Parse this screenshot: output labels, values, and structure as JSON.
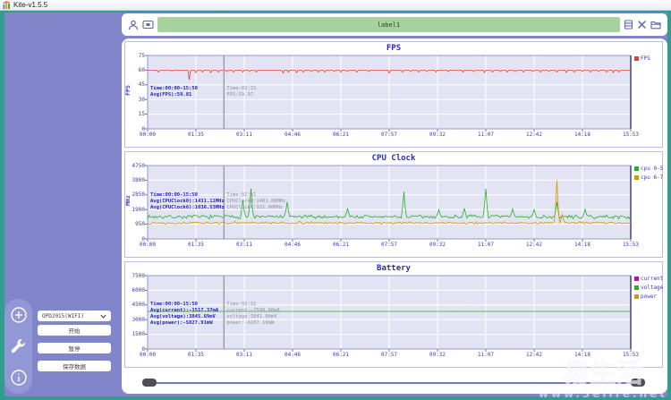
{
  "window": {
    "title": "Kite-v1.5.5"
  },
  "topbar": {
    "label_value": "label1",
    "label_bg": "#a7d29f",
    "icon_color": "#5b64b8"
  },
  "sidebar": {
    "device_select": {
      "value": "OPD2015(WIFI)"
    },
    "buttons": [
      {
        "label": "开始"
      },
      {
        "label": "暂停"
      },
      {
        "label": "保存数据"
      }
    ]
  },
  "watermark": {
    "line1": "易生活",
    "line2": "www.3elife.net"
  },
  "colors": {
    "teal_frame": "#2f9e8e",
    "purple_bg": "#8186cb",
    "plot_bg": "#e3e4f3",
    "grid": "#ffffff",
    "plot_border": "#9598c8",
    "cursor": "#9a9aa4",
    "axis_text": "#3a3ab8"
  },
  "chart_data": [
    {
      "type": "line",
      "title": "FPS",
      "ylabel": "FPS",
      "ylim": [
        0,
        75
      ],
      "yticks": [
        0,
        15,
        30,
        45,
        60,
        75
      ],
      "xticks": [
        "00:00",
        "01:35",
        "03:11",
        "04:46",
        "06:21",
        "07:57",
        "09:32",
        "11:07",
        "12:42",
        "14:18",
        "15:53"
      ],
      "cursor_frac": 0.158,
      "ann_top": 49,
      "legend": [
        {
          "label": "FPS",
          "color": "#e43d3d"
        }
      ],
      "series": [
        {
          "name": "FPS",
          "color": "#e43d3d",
          "baseline": 60,
          "noise": 0,
          "seed": 3,
          "dips": [
            [
              0.022,
              58
            ],
            [
              0.05,
              59
            ],
            [
              0.085,
              50
            ],
            [
              0.1,
              57.5
            ],
            [
              0.115,
              58
            ],
            [
              0.13,
              57.5
            ],
            [
              0.148,
              58
            ],
            [
              0.163,
              58.5
            ],
            [
              0.178,
              58
            ],
            [
              0.197,
              58
            ],
            [
              0.212,
              58.5
            ],
            [
              0.226,
              58
            ],
            [
              0.28,
              57
            ],
            [
              0.292,
              58
            ],
            [
              0.308,
              57.5
            ],
            [
              0.322,
              58
            ],
            [
              0.338,
              58.5
            ],
            [
              0.352,
              58
            ],
            [
              0.368,
              58
            ],
            [
              0.385,
              58.5
            ],
            [
              0.4,
              58
            ],
            [
              0.415,
              58.5
            ],
            [
              0.433,
              58
            ],
            [
              0.458,
              58.5
            ],
            [
              0.5,
              57
            ],
            [
              0.528,
              58
            ],
            [
              0.545,
              58.5
            ],
            [
              0.56,
              58
            ],
            [
              0.578,
              58.5
            ],
            [
              0.598,
              58
            ],
            [
              0.623,
              58.5
            ],
            [
              0.653,
              58
            ],
            [
              0.675,
              58.5
            ],
            [
              0.698,
              57.5
            ],
            [
              0.714,
              58
            ],
            [
              0.73,
              58.5
            ],
            [
              0.745,
              58
            ],
            [
              0.76,
              58.5
            ],
            [
              0.778,
              58
            ],
            [
              0.798,
              58.5
            ],
            [
              0.814,
              58
            ],
            [
              0.83,
              58.5
            ],
            [
              0.848,
              58
            ],
            [
              0.868,
              57.5
            ],
            [
              0.884,
              58
            ],
            [
              0.9,
              58.5
            ],
            [
              0.918,
              58
            ],
            [
              0.934,
              58.5
            ],
            [
              0.95,
              58
            ],
            [
              0.963,
              57.5
            ],
            [
              0.975,
              58
            ]
          ]
        }
      ],
      "annotations": {
        "summary": [
          "Time:00:00-15:50",
          "Avg(FPS):59.81"
        ],
        "cursor": [
          "Time:02:31",
          "FPS:59.97"
        ]
      }
    },
    {
      "type": "line",
      "title": "CPU Clock",
      "ylabel": "MHz",
      "ylim": [
        0,
        4750
      ],
      "yticks": [
        0,
        950,
        1900,
        2850,
        3800,
        4750
      ],
      "xticks": [
        "00:00",
        "01:35",
        "03:11",
        "04:46",
        "06:21",
        "07:57",
        "09:32",
        "11:07",
        "12:42",
        "14:18",
        "15:53"
      ],
      "cursor_frac": 0.158,
      "ann_top": 45,
      "legend": [
        {
          "label": "cpu 0-5",
          "color": "#27b027"
        },
        {
          "label": "cpu 6-7",
          "color": "#cf9a00"
        }
      ],
      "series": [
        {
          "name": "cpu 0-5",
          "color": "#27b027",
          "baseline": 1430,
          "noise": 145,
          "seed": 7,
          "spikes": [
            [
              0.197,
              2500
            ],
            [
              0.214,
              3250
            ],
            [
              0.29,
              2400
            ],
            [
              0.413,
              1980
            ],
            [
              0.53,
              3050
            ],
            [
              0.602,
              1900
            ],
            [
              0.655,
              1980
            ],
            [
              0.701,
              3250
            ],
            [
              0.756,
              1950
            ],
            [
              0.801,
              1900
            ],
            [
              0.848,
              2400
            ],
            [
              0.906,
              1920
            ]
          ]
        },
        {
          "name": "cpu 6-7",
          "color": "#cf9a00",
          "baseline": 1035,
          "noise": 90,
          "seed": 13,
          "spikes": [
            [
              0.848,
              3800
            ],
            [
              0.858,
              1600
            ]
          ]
        }
      ],
      "annotations": {
        "summary": [
          "Time:00:00-15:50",
          "Avg(CPUClock0):1431.11MHz",
          "Avg(CPUClock6):1036.53MHz"
        ],
        "cursor": [
          "Time:02:31",
          "CPUClock0:1401.00MHz",
          "CPUClock6:921.00MHz"
        ]
      }
    },
    {
      "type": "line",
      "title": "Battery",
      "ylabel": "",
      "ylim": [
        0,
        7500
      ],
      "yticks": [
        0,
        1500,
        3000,
        4500,
        6000,
        7500
      ],
      "xticks": [
        "00:00",
        "01:35",
        "03:11",
        "04:46",
        "06:21",
        "07:57",
        "09:32",
        "11:07",
        "12:42",
        "14:18",
        "15:53"
      ],
      "cursor_frac": 0.158,
      "ann_top": 44,
      "legend": [
        {
          "label": "current",
          "color": "#cc00cc"
        },
        {
          "label": "voltage",
          "color": "#27b027"
        },
        {
          "label": "power",
          "color": "#cf9a00"
        }
      ],
      "series": [
        {
          "name": "current",
          "color": "#cc00cc",
          "baseline": -1590,
          "noise": 0,
          "seed": 2
        },
        {
          "name": "voltage",
          "color": "#27b027",
          "baseline": 3843,
          "noise": 4,
          "seed": 5
        },
        {
          "name": "power",
          "color": "#cf9a00",
          "baseline": -6107,
          "noise": 0,
          "seed": 4
        }
      ],
      "annotations": {
        "summary": [
          "Time:00:00-15:50",
          "Avg(current):-1517.37mA",
          "Avg(voltage):3845.69mV",
          "Avg(power):-5827.91mW"
        ],
        "cursor": [
          "Time:02:31",
          "current:-1590.00mA",
          "voltage:3841.00mV",
          "power:-6107.19mW"
        ]
      }
    }
  ]
}
